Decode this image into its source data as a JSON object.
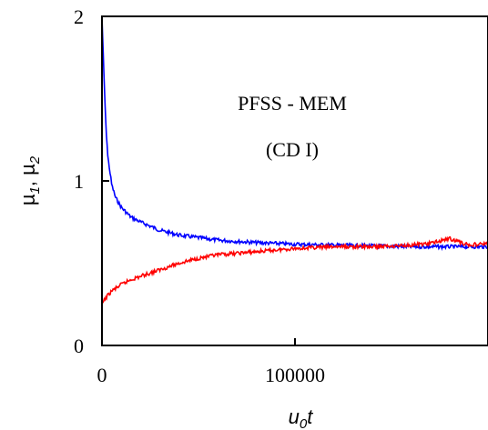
{
  "chart_data": {
    "type": "line",
    "xlim": [
      0,
      200000
    ],
    "ylim": [
      0,
      2
    ],
    "x_ticks": [
      {
        "value": 0,
        "label": "0"
      },
      {
        "value": 100000,
        "label": "100000"
      }
    ],
    "y_ticks": [
      {
        "value": 0,
        "label": "0"
      },
      {
        "value": 1,
        "label": "1"
      },
      {
        "value": 2,
        "label": "2"
      }
    ],
    "xlabel": {
      "main": "u",
      "sub": "0",
      "tail": "t"
    },
    "ylabel": {
      "p1": "µ",
      "s1": "1",
      "p2": ", µ",
      "s2": "2"
    },
    "annotations": [
      "PFSS - MEM",
      "(CD I)"
    ],
    "grid": false,
    "series": [
      {
        "color": "#0000ff",
        "x": [
          0,
          1000,
          2000,
          3000,
          5000,
          7000,
          10000,
          15000,
          20000,
          30000,
          40000,
          50000,
          60000,
          80000,
          100000,
          120000,
          140000,
          160000,
          180000,
          200000
        ],
        "y": [
          2.0,
          1.65,
          1.35,
          1.15,
          0.98,
          0.9,
          0.84,
          0.78,
          0.75,
          0.7,
          0.67,
          0.655,
          0.64,
          0.625,
          0.615,
          0.61,
          0.605,
          0.6,
          0.6,
          0.6
        ]
      },
      {
        "color": "#ff0000",
        "x": [
          0,
          2000,
          5000,
          10000,
          15000,
          20000,
          30000,
          40000,
          50000,
          60000,
          80000,
          100000,
          120000,
          140000,
          160000,
          170000,
          180000,
          190000,
          200000
        ],
        "y": [
          0.25,
          0.29,
          0.33,
          0.37,
          0.4,
          0.42,
          0.46,
          0.5,
          0.53,
          0.55,
          0.57,
          0.59,
          0.6,
          0.6,
          0.61,
          0.62,
          0.65,
          0.61,
          0.62
        ]
      }
    ]
  }
}
